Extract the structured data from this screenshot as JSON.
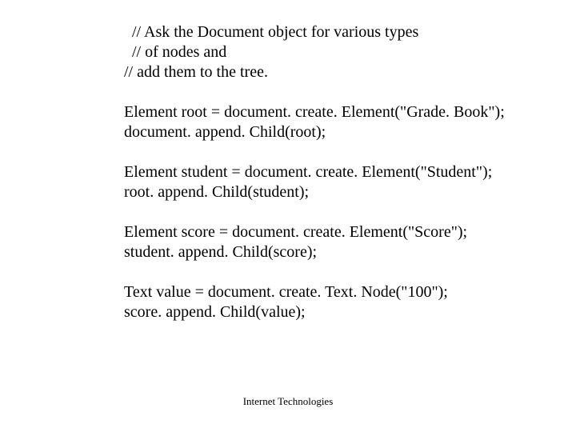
{
  "lines": {
    "comment1": "// Ask the Document object for various types",
    "comment2": "// of nodes and",
    "comment3": "//  add them to the tree.",
    "block1_line1": "Element root = document. create. Element(\"Grade. Book\");",
    "block1_line2": "document. append. Child(root);",
    "block2_line1": "Element student = document. create. Element(\"Student\");",
    "block2_line2": "root. append. Child(student);",
    "block3_line1": "Element score = document. create. Element(\"Score\");",
    "block3_line2": "student. append. Child(score);",
    "block4_line1": "Text value = document. create. Text. Node(\"100\");",
    "block4_line2": "score. append. Child(value);"
  },
  "footer": "Internet Technologies",
  "styles": {
    "font_family": "Times New Roman",
    "body_fontsize": 20,
    "footer_fontsize": 13,
    "text_color": "#000000",
    "background_color": "#ffffff"
  }
}
